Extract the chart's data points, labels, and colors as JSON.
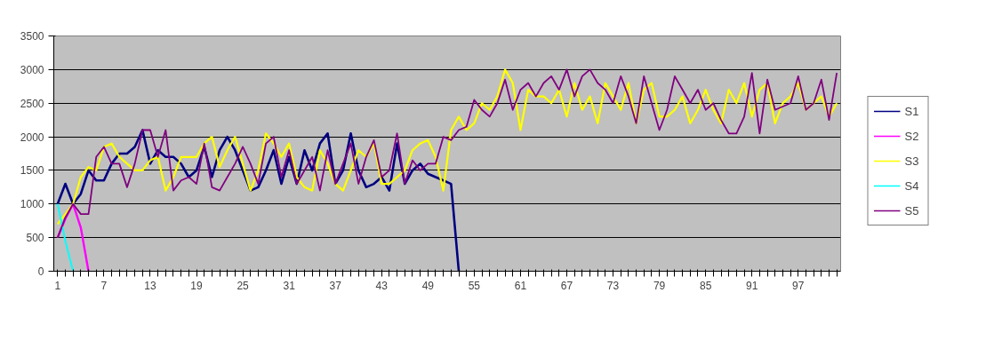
{
  "chart_data": {
    "type": "line",
    "categories": [
      "1",
      null,
      null,
      null,
      null,
      null,
      "7",
      null,
      null,
      null,
      null,
      null,
      "13",
      null,
      null,
      null,
      null,
      null,
      "19",
      null,
      null,
      null,
      null,
      null,
      "25",
      null,
      null,
      null,
      null,
      null,
      "31",
      null,
      null,
      null,
      null,
      null,
      "37",
      null,
      null,
      null,
      null,
      null,
      "43",
      null,
      null,
      null,
      null,
      null,
      "49",
      null,
      null,
      null,
      null,
      null,
      "55",
      null,
      null,
      null,
      null,
      null,
      "61",
      null,
      null,
      null,
      null,
      null,
      "67",
      null,
      null,
      null,
      null,
      null,
      "73",
      null,
      null,
      null,
      null,
      null,
      "79",
      null,
      null,
      null,
      null,
      null,
      "85",
      null,
      null,
      null,
      null,
      null,
      "91",
      null,
      null,
      null,
      null,
      null,
      "97",
      null,
      null,
      null,
      null,
      null
    ],
    "series": [
      {
        "name": "S1",
        "color": "#000080",
        "values": [
          1000,
          1300,
          1000,
          1150,
          1500,
          1350,
          1350,
          1600,
          1750,
          1750,
          1850,
          2100,
          1600,
          1800,
          1700,
          1700,
          1600,
          1400,
          1500,
          1850,
          1400,
          1800,
          2000,
          1800,
          1500,
          1200,
          1250,
          1500,
          1800,
          1300,
          1700,
          1300,
          1800,
          1500,
          1900,
          2050,
          1300,
          1500,
          2050,
          1500,
          1250,
          1300,
          1400,
          1200,
          1900,
          1300,
          1500,
          1600,
          1450,
          1400,
          1350,
          1300,
          0,
          null,
          null,
          null,
          null,
          null,
          null,
          null,
          null,
          null,
          null,
          null,
          null,
          null,
          null,
          null,
          null,
          null,
          null,
          null,
          null,
          null,
          null,
          null,
          null,
          null,
          null,
          null,
          null,
          null,
          null,
          null,
          null,
          null,
          null,
          null,
          null,
          null,
          null,
          null,
          null,
          null,
          null,
          null,
          null,
          null,
          null,
          null,
          null,
          null
        ]
      },
      {
        "name": "S2",
        "color": "#ff00ff",
        "values": [
          500,
          780,
          1000,
          650,
          0,
          null,
          null,
          null,
          null,
          null,
          null,
          null,
          null,
          null,
          null,
          null,
          null,
          null,
          null,
          null,
          null,
          null,
          null,
          null,
          null,
          null,
          null,
          null,
          null,
          null,
          null,
          null,
          null,
          null,
          null,
          null,
          null,
          null,
          null,
          null,
          null,
          null,
          null,
          null,
          null,
          null,
          null,
          null,
          null,
          null,
          null,
          null,
          null,
          null,
          null,
          null,
          null,
          null,
          null,
          null,
          null,
          null,
          null,
          null,
          null,
          null,
          null,
          null,
          null,
          null,
          null,
          null,
          null,
          null,
          null,
          null,
          null,
          null,
          null,
          null,
          null,
          null,
          null,
          null,
          null,
          null,
          null,
          null,
          null,
          null,
          null,
          null,
          null,
          null,
          null,
          null,
          null,
          null,
          null,
          null,
          null,
          null
        ]
      },
      {
        "name": "S3",
        "color": "#ffff00",
        "values": [
          700,
          850,
          1000,
          1400,
          1550,
          1500,
          1850,
          1900,
          1700,
          1600,
          1500,
          1500,
          1650,
          1700,
          1200,
          1400,
          1700,
          1700,
          1700,
          1900,
          2000,
          1550,
          1800,
          2000,
          1600,
          1200,
          1500,
          2050,
          1900,
          1700,
          1900,
          1400,
          1250,
          1200,
          1800,
          1600,
          1300,
          1200,
          1500,
          1800,
          1700,
          1900,
          1300,
          1300,
          1400,
          1500,
          1800,
          1900,
          1950,
          1700,
          1200,
          2100,
          2300,
          2100,
          2200,
          2500,
          2400,
          2600,
          3000,
          2800,
          2100,
          2700,
          2600,
          2600,
          2500,
          2700,
          2300,
          2800,
          2400,
          2600,
          2200,
          2800,
          2600,
          2400,
          2800,
          2200,
          2700,
          2800,
          2300,
          2300,
          2400,
          2600,
          2200,
          2400,
          2700,
          2400,
          2200,
          2700,
          2500,
          2800,
          2300,
          2700,
          2800,
          2200,
          2500,
          2600,
          2800,
          2400,
          2500,
          2600,
          2300,
          2500
        ]
      },
      {
        "name": "S4",
        "color": "#00ffff",
        "values": [
          1000,
          450,
          0,
          null,
          null,
          null,
          null,
          null,
          null,
          null,
          null,
          null,
          null,
          null,
          null,
          null,
          null,
          null,
          null,
          null,
          null,
          null,
          null,
          null,
          null,
          null,
          null,
          null,
          null,
          null,
          null,
          null,
          null,
          null,
          null,
          null,
          null,
          null,
          null,
          null,
          null,
          null,
          null,
          null,
          null,
          null,
          null,
          null,
          null,
          null,
          null,
          null,
          null,
          null,
          null,
          null,
          null,
          null,
          null,
          null,
          null,
          null,
          null,
          null,
          null,
          null,
          null,
          null,
          null,
          null,
          null,
          null,
          null,
          null,
          null,
          null,
          null,
          null,
          null,
          null,
          null,
          null,
          null,
          null,
          null,
          null,
          null,
          null,
          null,
          null,
          null,
          null,
          null,
          null,
          null,
          null,
          null,
          null,
          null,
          null,
          null,
          null
        ]
      },
      {
        "name": "S5",
        "color": "#800080",
        "values": [
          500,
          800,
          1000,
          850,
          850,
          1700,
          1850,
          1600,
          1600,
          1250,
          1600,
          2100,
          2100,
          1700,
          2100,
          1200,
          1350,
          1400,
          1300,
          1900,
          1250,
          1200,
          1400,
          1600,
          1850,
          1600,
          1300,
          1900,
          2000,
          1400,
          1800,
          1300,
          1500,
          1700,
          1200,
          1800,
          1300,
          1600,
          1900,
          1300,
          1700,
          1950,
          1400,
          1500,
          2050,
          1300,
          1650,
          1500,
          1600,
          1600,
          2000,
          1950,
          2100,
          2150,
          2550,
          2400,
          2300,
          2500,
          2850,
          2400,
          2700,
          2800,
          2600,
          2800,
          2900,
          2700,
          3000,
          2600,
          2900,
          3000,
          2800,
          2700,
          2500,
          2900,
          2600,
          2200,
          2900,
          2500,
          2100,
          2400,
          2900,
          2700,
          2500,
          2700,
          2400,
          2500,
          2250,
          2050,
          2050,
          2300,
          2950,
          2050,
          2850,
          2400,
          2450,
          2500,
          2900,
          2400,
          2500,
          2850,
          2250,
          2950
        ]
      }
    ],
    "ylim": [
      0,
      3500
    ],
    "yticks": [
      0,
      500,
      1000,
      1500,
      2000,
      2500,
      3000,
      3500
    ],
    "grid": "y",
    "legend": "right",
    "marker": "none",
    "line_style": "solid"
  }
}
